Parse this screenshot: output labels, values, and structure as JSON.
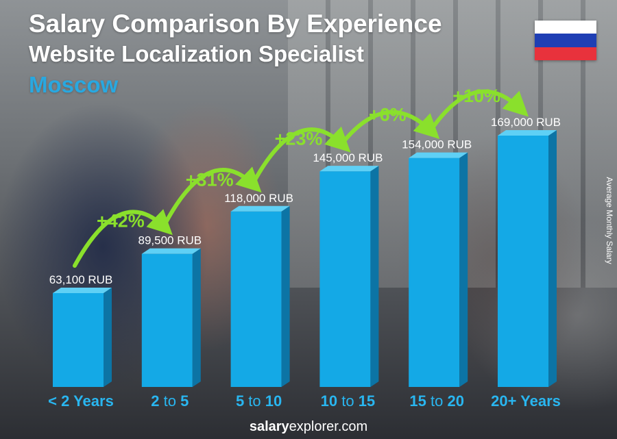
{
  "header": {
    "title": "Salary Comparison By Experience",
    "subtitle": "Website Localization Specialist",
    "location": "Moscow"
  },
  "flag": {
    "country": "Russia",
    "colors": [
      "#ffffff",
      "#1f3fb4",
      "#e8323c"
    ]
  },
  "footer": {
    "brand_bold": "salary",
    "brand_rest": "explorer.com"
  },
  "colors": {
    "bar_front": "#14a9e6",
    "bar_side": "#0c74a5",
    "bar_top": "#5fd0f5",
    "increase": "#8ae02c",
    "label": "#ffffff"
  },
  "chart_data": {
    "type": "bar",
    "title": "Salary Comparison By Experience",
    "ylabel": "Average Monthly Salary",
    "currency": "RUB",
    "ylim": [
      0,
      169000
    ],
    "grid": false,
    "categories": [
      {
        "label": "< 2 Years",
        "parts": [
          {
            "t": "< 2 Years",
            "b": true
          }
        ]
      },
      {
        "label": "2 to 5",
        "parts": [
          {
            "t": "2",
            "b": true
          },
          {
            "t": " to ",
            "b": false
          },
          {
            "t": "5",
            "b": true
          }
        ]
      },
      {
        "label": "5 to 10",
        "parts": [
          {
            "t": "5",
            "b": true
          },
          {
            "t": " to ",
            "b": false
          },
          {
            "t": "10",
            "b": true
          }
        ]
      },
      {
        "label": "10 to 15",
        "parts": [
          {
            "t": "10",
            "b": true
          },
          {
            "t": " to ",
            "b": false
          },
          {
            "t": "15",
            "b": true
          }
        ]
      },
      {
        "label": "15 to 20",
        "parts": [
          {
            "t": "15",
            "b": true
          },
          {
            "t": " to ",
            "b": false
          },
          {
            "t": "20",
            "b": true
          }
        ]
      },
      {
        "label": "20+ Years",
        "parts": [
          {
            "t": "20+ Years",
            "b": true
          }
        ]
      }
    ],
    "values": [
      63100,
      89500,
      118000,
      145000,
      154000,
      169000
    ],
    "value_labels": [
      "63,100 RUB",
      "89,500 RUB",
      "118,000 RUB",
      "145,000 RUB",
      "154,000 RUB",
      "169,000 RUB"
    ],
    "increases": [
      "+42%",
      "+31%",
      "+23%",
      "+6%",
      "+10%"
    ]
  }
}
